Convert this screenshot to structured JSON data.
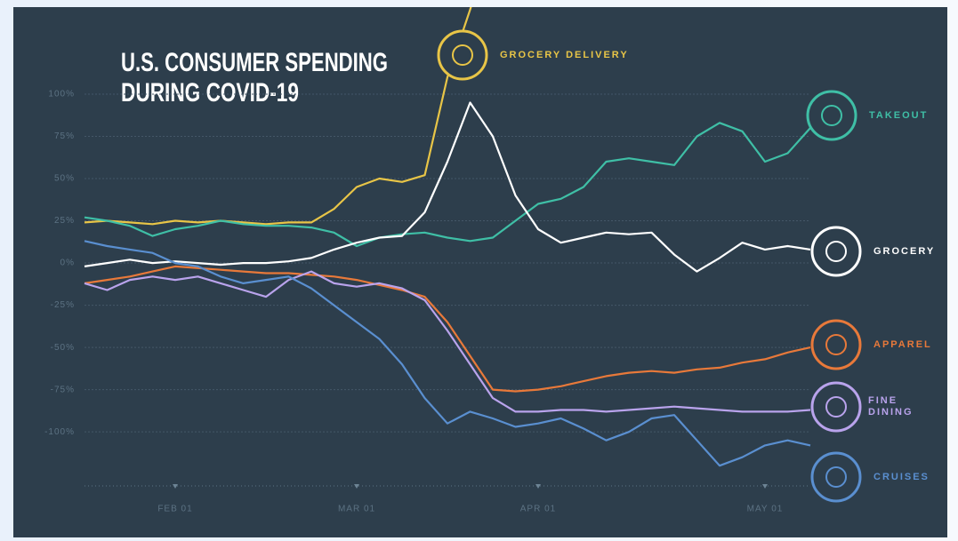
{
  "chart_data": {
    "type": "line",
    "title": [
      "U.S. CONSUMER SPENDING",
      "DURING COVID-19"
    ],
    "categories": [
      null,
      null,
      null,
      null,
      "FEB 01",
      null,
      null,
      null,
      null,
      null,
      null,
      null,
      "MAR 01",
      null,
      null,
      null,
      null,
      null,
      null,
      null,
      "APR 01",
      null,
      null,
      null,
      null,
      null,
      null,
      null,
      null,
      null,
      "MAY 01",
      null,
      null
    ],
    "ylim": [
      -132,
      151
    ],
    "yticks": [
      {
        "value": 100,
        "label": "100%"
      },
      {
        "value": 75,
        "label": "75%"
      },
      {
        "value": 50,
        "label": "50%"
      },
      {
        "value": 25,
        "label": "25%"
      },
      {
        "value": 0,
        "label": "0%"
      },
      {
        "value": -25,
        "label": "-25%"
      },
      {
        "value": -50,
        "label": "-50%"
      },
      {
        "value": -75,
        "label": "-75%"
      },
      {
        "value": -100,
        "label": "-100%"
      }
    ],
    "grid": true,
    "series": [
      {
        "name": "GROCERY DELIVERY",
        "color": "#e8c547",
        "values": [
          24,
          25,
          24,
          23,
          25,
          24,
          25,
          24,
          23,
          24,
          24,
          32,
          45,
          50,
          48,
          52,
          110,
          150,
          195,
          null,
          null,
          null,
          null,
          null,
          null,
          null,
          null,
          null,
          null,
          null,
          null,
          null,
          null
        ]
      },
      {
        "name": "TAKEOUT",
        "color": "#3fbfa6",
        "values": [
          27,
          25,
          22,
          16,
          20,
          22,
          25,
          23,
          22,
          22,
          21,
          18,
          10,
          15,
          17,
          18,
          15,
          13,
          15,
          25,
          35,
          38,
          45,
          60,
          62,
          60,
          58,
          75,
          83,
          78,
          60,
          65,
          80
        ]
      },
      {
        "name": "GROCERY",
        "color": "#ffffff",
        "values": [
          -2,
          0,
          2,
          0,
          1,
          0,
          -1,
          0,
          0,
          1,
          3,
          8,
          12,
          15,
          16,
          30,
          60,
          95,
          75,
          40,
          20,
          12,
          15,
          18,
          17,
          18,
          5,
          -5,
          3,
          12,
          8,
          10,
          8
        ]
      },
      {
        "name": "APPAREL",
        "color": "#e8793a",
        "values": [
          -12,
          -10,
          -8,
          -5,
          -2,
          -3,
          -4,
          -5,
          -6,
          -6,
          -7,
          -8,
          -10,
          -13,
          -16,
          -20,
          -35,
          -55,
          -75,
          -76,
          -75,
          -73,
          -70,
          -67,
          -65,
          -64,
          -65,
          -63,
          -62,
          -59,
          -57,
          -53,
          -50
        ]
      },
      {
        "name": "FINE DINING",
        "color": "#b9a3ec",
        "values": [
          -12,
          -16,
          -10,
          -8,
          -10,
          -8,
          -12,
          -16,
          -20,
          -10,
          -5,
          -12,
          -14,
          -12,
          -15,
          -22,
          -40,
          -60,
          -80,
          -88,
          -88,
          -87,
          -87,
          -88,
          -87,
          -86,
          -85,
          -86,
          -87,
          -88,
          -88,
          -88,
          -87
        ]
      },
      {
        "name": "CRUISES",
        "color": "#5a8fd0",
        "values": [
          13,
          10,
          8,
          6,
          0,
          -2,
          -8,
          -12,
          -10,
          -8,
          -15,
          -25,
          -35,
          -45,
          -60,
          -80,
          -95,
          -88,
          -92,
          -97,
          -95,
          -92,
          -98,
          -105,
          -100,
          -92,
          -90,
          -105,
          -120,
          -115,
          -108,
          -105,
          -108
        ]
      }
    ]
  }
}
